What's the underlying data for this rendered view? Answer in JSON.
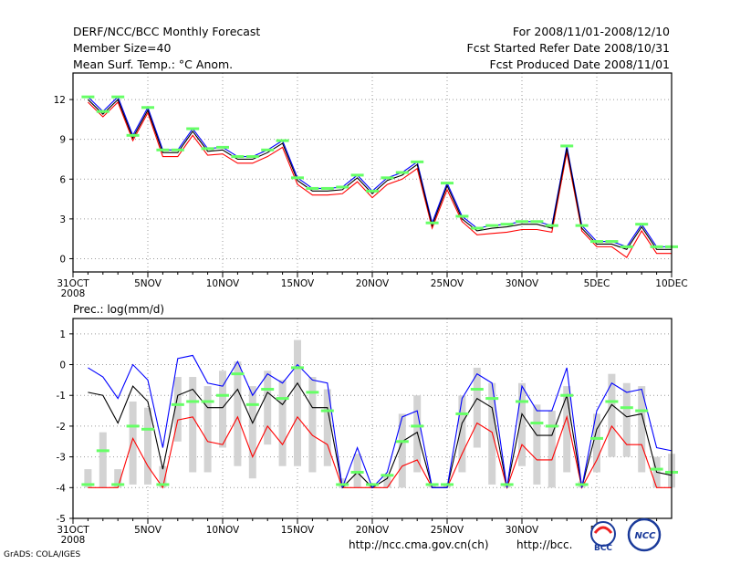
{
  "header": {
    "title": "DERF/NCC/BCC Monthly Forecast",
    "member": "Member Size=40",
    "variable": "Mean Surf. Temp.: °C Anom.",
    "period": "For 2008/11/01-2008/12/10",
    "started": "Fcst Started Refer Date 2008/10/31",
    "produced": "Fcst Produced Date 2008/11/01"
  },
  "footer": {
    "url1": "http://ncc.cma.gov.cn(ch)",
    "url2": "http://bcc.",
    "credit": "GrADS: COLA/IGES",
    "bcc_logo_text": "BCC",
    "ncc_logo_text": "NCC"
  },
  "colors": {
    "upper": "#0000ff",
    "mean": "#000000",
    "lower": "#ff0000",
    "marker": "#66ff66",
    "bar": "#d3d3d3",
    "grid": "#999999"
  },
  "chart_data": [
    {
      "type": "line",
      "title": "Mean Surf. Temp.: °C Anom.",
      "x_ticks": [
        "31OCT",
        "5NOV",
        "10NOV",
        "15NOV",
        "20NOV",
        "25NOV",
        "30NOV",
        "5DEC",
        "10DEC"
      ],
      "x_tick_day": [
        0,
        5,
        10,
        15,
        20,
        25,
        30,
        35,
        40
      ],
      "x_sub": "2008",
      "ylim": [
        -1,
        14
      ],
      "y_ticks": [
        0,
        3,
        6,
        9,
        12
      ],
      "x": [
        1,
        2,
        3,
        4,
        5,
        6,
        7,
        8,
        9,
        10,
        11,
        12,
        13,
        14,
        15,
        16,
        17,
        18,
        19,
        20,
        21,
        22,
        23,
        24,
        25,
        26,
        27,
        28,
        29,
        30,
        31,
        32,
        33,
        34,
        35,
        36,
        37,
        38,
        39,
        40
      ],
      "series": [
        {
          "name": "upper",
          "values": [
            12.2,
            11.1,
            12.2,
            9.3,
            11.4,
            8.2,
            8.2,
            9.8,
            8.3,
            8.4,
            7.7,
            7.7,
            8.2,
            8.9,
            6.1,
            5.3,
            5.3,
            5.4,
            6.3,
            5.1,
            6.1,
            6.5,
            7.3,
            2.7,
            5.7,
            3.2,
            2.3,
            2.5,
            2.6,
            2.8,
            2.8,
            2.5,
            8.5,
            2.5,
            1.3,
            1.3,
            0.9,
            2.6,
            0.9,
            0.9
          ]
        },
        {
          "name": "mean",
          "values": [
            12.0,
            10.9,
            12.0,
            9.1,
            11.2,
            8.0,
            8.0,
            9.6,
            8.1,
            8.2,
            7.5,
            7.5,
            8.0,
            8.7,
            5.9,
            5.1,
            5.1,
            5.2,
            6.1,
            4.9,
            5.9,
            6.3,
            7.1,
            2.5,
            5.5,
            3.0,
            2.1,
            2.3,
            2.4,
            2.6,
            2.6,
            2.3,
            8.3,
            2.3,
            1.1,
            1.1,
            0.7,
            2.4,
            0.7,
            0.7
          ]
        },
        {
          "name": "lower",
          "values": [
            11.8,
            10.7,
            11.8,
            8.9,
            11.0,
            7.7,
            7.7,
            9.3,
            7.8,
            7.9,
            7.2,
            7.2,
            7.7,
            8.4,
            5.6,
            4.8,
            4.8,
            4.9,
            5.8,
            4.6,
            5.6,
            6.0,
            6.8,
            2.3,
            5.2,
            2.8,
            1.8,
            1.9,
            2.0,
            2.2,
            2.2,
            2.0,
            8.0,
            2.1,
            0.9,
            0.9,
            0.1,
            2.1,
            0.4,
            0.4
          ]
        },
        {
          "name": "marker",
          "values": [
            12.2,
            11.1,
            12.2,
            9.3,
            11.4,
            8.2,
            8.2,
            9.8,
            8.3,
            8.4,
            7.7,
            7.7,
            8.2,
            8.9,
            6.1,
            5.3,
            5.3,
            5.4,
            6.3,
            5.1,
            6.1,
            6.5,
            7.3,
            2.7,
            5.7,
            3.2,
            2.3,
            2.5,
            2.6,
            2.8,
            2.8,
            2.5,
            8.5,
            2.5,
            1.3,
            1.3,
            0.9,
            2.6,
            0.9,
            0.9
          ]
        }
      ]
    },
    {
      "type": "line",
      "title": "Prec.: log(mm/d)",
      "x_ticks": [
        "31OCT",
        "5NOV",
        "10NOV",
        "15NOV",
        "20NOV",
        "25NOV",
        "30NOV",
        "5D"
      ],
      "x_tick_day": [
        0,
        5,
        10,
        15,
        20,
        25,
        30,
        35
      ],
      "x_sub": "2008",
      "ylim": [
        -5,
        1.5
      ],
      "y_ticks": [
        -5,
        -4,
        -3,
        -2,
        -1,
        0,
        1
      ],
      "x": [
        1,
        2,
        3,
        4,
        5,
        6,
        7,
        8,
        9,
        10,
        11,
        12,
        13,
        14,
        15,
        16,
        17,
        18,
        19,
        20,
        21,
        22,
        23,
        24,
        25,
        26,
        27,
        28,
        29,
        30,
        31,
        32,
        33,
        34,
        35,
        36,
        37,
        38,
        39,
        40
      ],
      "series": [
        {
          "name": "upper",
          "values": [
            -0.1,
            -0.4,
            -1.1,
            0.0,
            -0.5,
            -2.7,
            0.2,
            0.3,
            -0.6,
            -0.7,
            0.1,
            -1.0,
            -0.3,
            -0.6,
            0.0,
            -0.5,
            -0.6,
            -4.0,
            -2.7,
            -4.0,
            -3.5,
            -1.7,
            -1.5,
            -4.0,
            -4.0,
            -1.1,
            -0.3,
            -0.6,
            -4.0,
            -0.7,
            -1.5,
            -1.5,
            -0.1,
            -4.0,
            -1.5,
            -0.6,
            -0.9,
            -0.8,
            -2.7,
            -2.8
          ]
        },
        {
          "name": "mean",
          "values": [
            -0.9,
            -1.0,
            -1.9,
            -0.7,
            -1.2,
            -3.4,
            -1.0,
            -0.8,
            -1.4,
            -1.4,
            -0.8,
            -1.9,
            -0.9,
            -1.3,
            -0.6,
            -1.4,
            -1.4,
            -4.0,
            -3.5,
            -4.0,
            -3.7,
            -2.5,
            -2.2,
            -4.0,
            -4.0,
            -1.9,
            -1.1,
            -1.4,
            -4.0,
            -1.6,
            -2.3,
            -2.3,
            -1.0,
            -4.0,
            -2.1,
            -1.3,
            -1.7,
            -1.6,
            -3.5,
            -3.6
          ]
        },
        {
          "name": "lower",
          "values": [
            -4.0,
            -4.0,
            -4.0,
            -2.4,
            -3.3,
            -4.0,
            -1.8,
            -1.7,
            -2.5,
            -2.6,
            -1.7,
            -3.0,
            -2.0,
            -2.6,
            -1.7,
            -2.3,
            -2.6,
            -4.0,
            -4.0,
            -4.0,
            -4.0,
            -3.3,
            -3.1,
            -4.0,
            -4.0,
            -2.9,
            -1.9,
            -2.2,
            -4.0,
            -2.6,
            -3.1,
            -3.1,
            -1.7,
            -4.0,
            -3.1,
            -2.0,
            -2.6,
            -2.6,
            -4.0,
            -4.0
          ]
        },
        {
          "name": "marker",
          "values": [
            -3.9,
            -2.8,
            -3.9,
            -2.0,
            -2.1,
            -3.9,
            -1.3,
            -1.2,
            -1.2,
            -1.0,
            -0.3,
            -1.3,
            -0.8,
            -1.1,
            -0.1,
            -0.9,
            -1.5,
            -3.9,
            -3.5,
            -3.9,
            -3.6,
            -2.5,
            -2.0,
            -3.9,
            -3.9,
            -1.6,
            -0.8,
            -1.1,
            -3.9,
            -1.2,
            -1.9,
            -2.0,
            -1.0,
            -3.9,
            -2.4,
            -1.2,
            -1.4,
            -1.5,
            -3.4,
            -3.5
          ]
        },
        {
          "name": "bar_top",
          "values": [
            -3.4,
            -2.2,
            -3.4,
            -1.2,
            -1.4,
            -3.3,
            -0.4,
            -0.4,
            -0.7,
            -0.2,
            0.1,
            -0.7,
            -0.2,
            -0.5,
            0.8,
            -0.4,
            -0.8,
            -3.7,
            -2.9,
            -3.9,
            -3.6,
            -1.6,
            -1.0,
            -3.9,
            -3.9,
            -1.0,
            -0.1,
            -0.6,
            -3.9,
            -0.6,
            -1.3,
            -1.5,
            -0.7,
            -3.8,
            -1.6,
            -0.3,
            -0.6,
            -0.7,
            -3.0,
            -2.9
          ]
        },
        {
          "name": "bar_bottom",
          "values": [
            -4.0,
            -4.0,
            -4.0,
            -3.9,
            -3.9,
            -4.0,
            -2.5,
            -3.5,
            -3.5,
            -2.7,
            -3.3,
            -3.7,
            -2.6,
            -3.3,
            -3.3,
            -3.5,
            -3.3,
            -4.0,
            -4.0,
            -4.0,
            -4.0,
            -4.0,
            -3.5,
            -4.0,
            -4.0,
            -3.5,
            -2.7,
            -3.9,
            -4.0,
            -3.3,
            -3.9,
            -4.0,
            -3.5,
            -4.0,
            -3.5,
            -3.0,
            -3.0,
            -3.5,
            -4.0,
            -4.0
          ]
        }
      ]
    }
  ]
}
